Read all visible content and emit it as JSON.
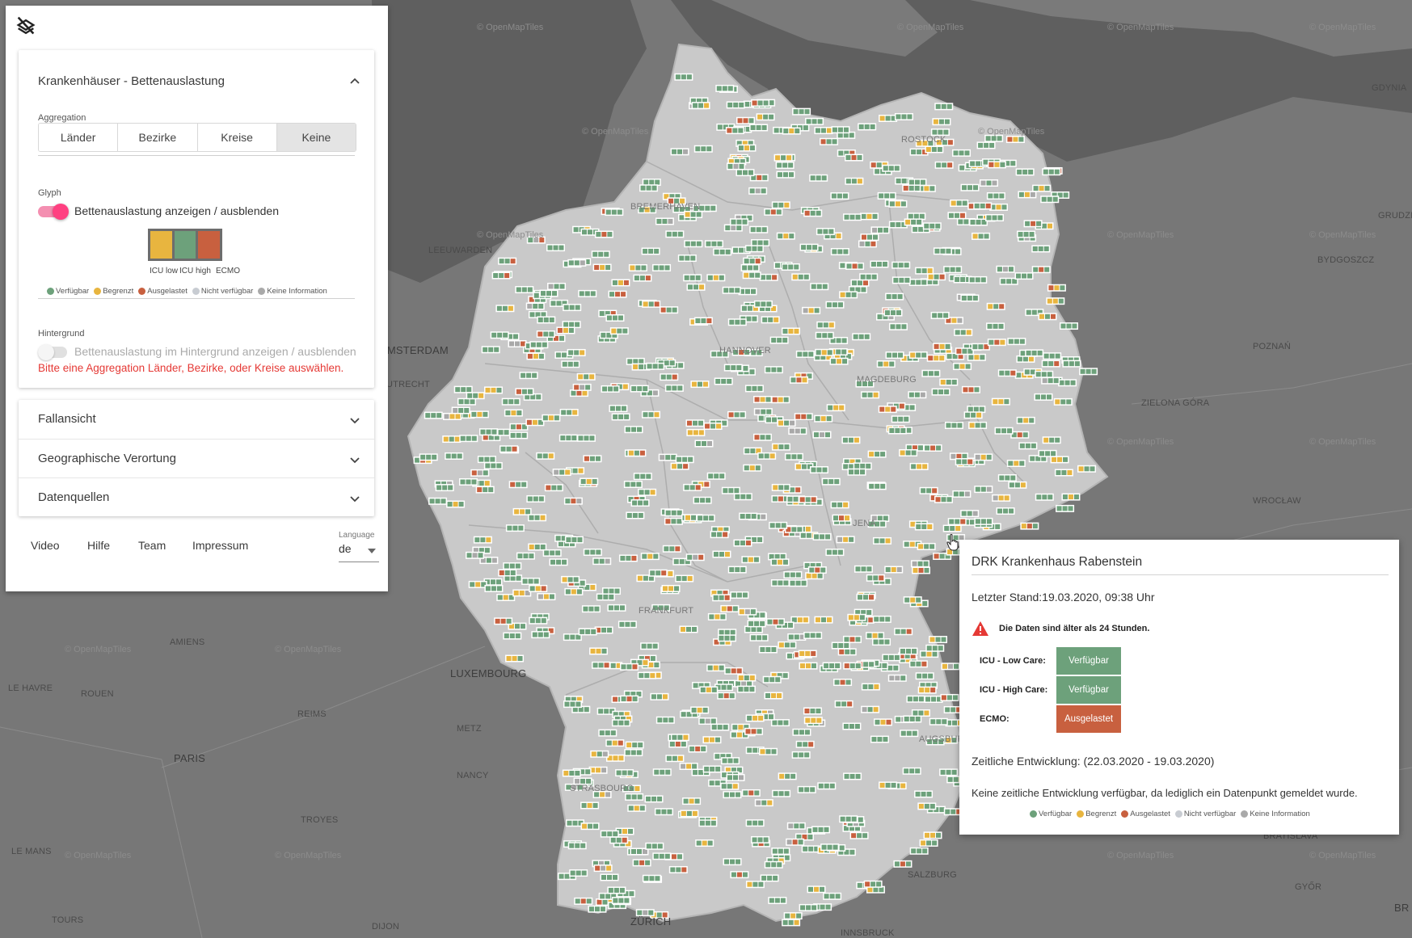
{
  "panel": {
    "visibility_toggle_icon": "layers-off-icon",
    "hospital_card": {
      "title": "Krankenhäuser - Bettenauslastung",
      "aggregation_label": "Aggregation",
      "aggregation_options": [
        "Länder",
        "Bezirke",
        "Kreise",
        "Keine"
      ],
      "aggregation_selected": "Keine",
      "glyph_label": "Glyph",
      "glyph_toggle_text": "Bettenauslastung anzeigen / ausblenden",
      "glyph_toggle_on": true,
      "glyph_preview": {
        "labels": [
          "ICU low",
          "ICU high",
          "ECMO"
        ],
        "colors": [
          "#e8b53f",
          "#6da17b",
          "#c8603f"
        ]
      },
      "legend": [
        {
          "label": "Verfügbar",
          "color": "#6da17b"
        },
        {
          "label": "Begrenzt",
          "color": "#e8b53f"
        },
        {
          "label": "Ausgelastet",
          "color": "#c8603f"
        },
        {
          "label": "Nicht verfügbar",
          "color": "#c8ccd2"
        },
        {
          "label": "Keine Information",
          "color": "#a9a9a9"
        }
      ],
      "background_label": "Hintergrund",
      "background_toggle_text": "Bettenauslastung im Hintergrund anzeigen / ausblenden",
      "background_toggle_on": false,
      "error_text": "Bitte eine Aggregation Länder, Bezirke, oder Kreise auswählen."
    },
    "accordion": [
      {
        "title": "Fallansicht"
      },
      {
        "title": "Geographische Verortung"
      },
      {
        "title": "Datenquellen"
      }
    ],
    "footer_links": [
      "Video",
      "Hilfe",
      "Team",
      "Impressum"
    ],
    "language_label": "Language",
    "language_value": "de"
  },
  "map": {
    "watermark": "© OpenMapTiles",
    "cities": [
      {
        "name": "ROSTOCK"
      },
      {
        "name": "BREMERHAVEN"
      },
      {
        "name": "LEEUWARDEN"
      },
      {
        "name": "AMSTERDAM"
      },
      {
        "name": "UTRECHT"
      },
      {
        "name": "HANNOVER"
      },
      {
        "name": "MAGDEBURG"
      },
      {
        "name": "FRANKFURT"
      },
      {
        "name": "AMIENS"
      },
      {
        "name": "LUXEMBOURG"
      },
      {
        "name": "LE HAVRE"
      },
      {
        "name": "ROUEN"
      },
      {
        "name": "REIMS"
      },
      {
        "name": "METZ"
      },
      {
        "name": "PARIS"
      },
      {
        "name": "NANCY"
      },
      {
        "name": "STRASBOURG"
      },
      {
        "name": "TROYES"
      },
      {
        "name": "LE MANS"
      },
      {
        "name": "TOURS"
      },
      {
        "name": "DIJON"
      },
      {
        "name": "ZÜRICH"
      },
      {
        "name": "INNSBRUCK"
      },
      {
        "name": "SALZBURG"
      },
      {
        "name": "AUGSBURG"
      },
      {
        "name": "JENA"
      },
      {
        "name": "POZNAŃ"
      },
      {
        "name": "ZIELONA GÓRA"
      },
      {
        "name": "WROCŁAW"
      },
      {
        "name": "BYDGOSZCZ"
      },
      {
        "name": "GRUDZI"
      },
      {
        "name": "GDYNIA"
      },
      {
        "name": "BRATISLAVA"
      },
      {
        "name": "GYŐR"
      },
      {
        "name": "BR"
      }
    ]
  },
  "tooltip": {
    "hospital_name": "DRK Krankenhaus Rabenstein",
    "last_update": "Letzter Stand:19.03.2020, 09:38 Uhr",
    "warning_icon": "warning-triangle-icon",
    "warning_text": "Die Daten sind älter als 24 Stunden.",
    "rows": [
      {
        "label": "ICU - Low Care:",
        "status": "Verfügbar",
        "color": "#6da17b"
      },
      {
        "label": "ICU - High Care:",
        "status": "Verfügbar",
        "color": "#6da17b"
      },
      {
        "label": "ECMO:",
        "status": "Ausgelastet",
        "color": "#c8603f"
      }
    ],
    "timeline_title": "Zeitliche Entwicklung: (22.03.2020 - 19.03.2020)",
    "timeline_text": "Keine zeitliche Entwicklung verfügbar, da lediglich ein Datenpunkt gemeldet wurde."
  }
}
